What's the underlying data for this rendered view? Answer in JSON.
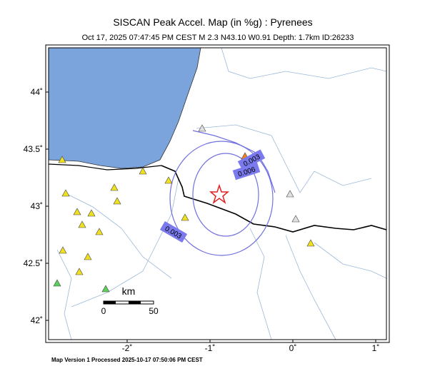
{
  "map": {
    "title": "SISCAN Peak Accel. Map (in %g) : Pyrenees",
    "subtitle": "Oct 17, 2025 07:47:45 PM CEST   M 2.3   N43.10 W0.91   Depth: 1.7km   ID:26233",
    "lat_ticks": [
      {
        "value": 44,
        "label": "44˚"
      },
      {
        "value": 43.5,
        "label": "43.5˚"
      },
      {
        "value": 43,
        "label": "43˚"
      },
      {
        "value": 42.5,
        "label": "42.5˚"
      },
      {
        "value": 42,
        "label": "42˚"
      }
    ],
    "lon_ticks": [
      {
        "value": -2,
        "label": "-2˚"
      },
      {
        "value": -1,
        "label": "-1˚"
      },
      {
        "value": 0,
        "label": "0˚"
      },
      {
        "value": 1,
        "label": "1˚"
      }
    ],
    "contour_labels": [
      "0.003",
      "0.006",
      "0.003"
    ],
    "scale": {
      "unit": "km",
      "start": "0",
      "end": "50"
    },
    "footer": "Map Version 1 Processed 2025-10-17 07:50:06 PM CEST"
  }
}
